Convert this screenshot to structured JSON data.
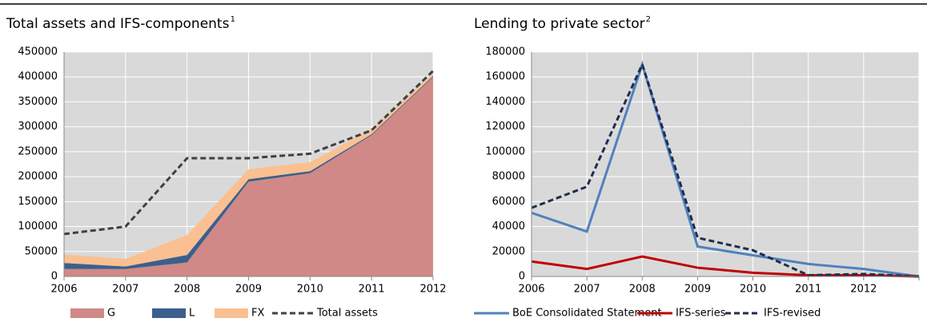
{
  "chart_data": [
    {
      "type": "area",
      "title": "Total assets and IFS-components",
      "title_note": "1",
      "categories": [
        "2006",
        "2007",
        "2008",
        "2009",
        "2010",
        "2011",
        "2012"
      ],
      "series": [
        {
          "name": "G",
          "color": "#d08986",
          "values": [
            15000,
            15000,
            28000,
            190000,
            207000,
            283000,
            400000
          ]
        },
        {
          "name": "L",
          "color": "#3b5f8e",
          "values": [
            12000,
            5000,
            15000,
            5000,
            4000,
            2000,
            2000
          ]
        },
        {
          "name": "FX",
          "color": "#fac091",
          "values": [
            17000,
            15000,
            40000,
            20000,
            18000,
            10000,
            5000
          ]
        },
        {
          "name": "Total assets",
          "color": "#404040",
          "dashed": true,
          "line": true,
          "values": [
            85000,
            100000,
            237000,
            237000,
            246000,
            293000,
            412000
          ]
        }
      ],
      "ylim": [
        0,
        450000
      ],
      "yticks": [
        0,
        50000,
        100000,
        150000,
        200000,
        250000,
        300000,
        350000,
        400000,
        450000
      ],
      "grid": true
    },
    {
      "type": "line",
      "title": "Lending to private sector",
      "title_note": "2",
      "categories": [
        "2006",
        "2007",
        "2008",
        "2009",
        "2010",
        "2011",
        "2012",
        null
      ],
      "series": [
        {
          "name": "BoE Consolidated Statement",
          "color": "#4f81bd",
          "values": [
            51000,
            36000,
            170000,
            24000,
            17000,
            10000,
            6000,
            0
          ]
        },
        {
          "name": "IFS-series",
          "color": "#c00000",
          "values": [
            12000,
            6000,
            16000,
            7000,
            3000,
            1000,
            1000,
            0
          ]
        },
        {
          "name": "IFS-revised",
          "color": "#1f2d4f",
          "dashed": true,
          "values": [
            55000,
            72000,
            170000,
            31000,
            21000,
            1000,
            2000,
            0
          ]
        }
      ],
      "ylim": [
        0,
        180000
      ],
      "yticks": [
        0,
        20000,
        40000,
        60000,
        80000,
        100000,
        120000,
        140000,
        160000,
        180000
      ],
      "grid": true
    }
  ]
}
